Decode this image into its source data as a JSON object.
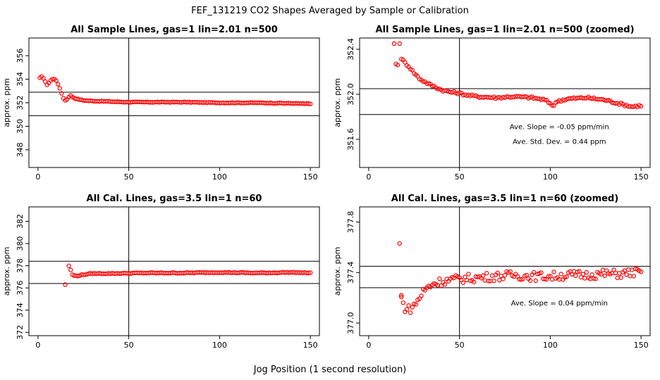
{
  "figure": {
    "title": "FEF_131219  CO2 Shapes Averaged by Sample or Calibration",
    "xlabel": "Jog Position (1 second resolution)"
  },
  "chart_data": [
    {
      "type": "scatter",
      "title": "All Sample Lines, gas=1 lin=2.01 n=500",
      "ylabel": "approx. ppm",
      "xlim": [
        -5,
        155
      ],
      "ylim": [
        346.5,
        357.5
      ],
      "x_ticks": [
        0,
        50,
        100,
        150
      ],
      "y_ticks": [
        348,
        350,
        352,
        354,
        356
      ],
      "hlines": [
        352.9,
        350.9
      ],
      "vline": 50,
      "annotations": [],
      "curve": {
        "x_start": 1,
        "x_end": 150,
        "anchors": [
          [
            1,
            354.1
          ],
          [
            2,
            354.2
          ],
          [
            3,
            354.1
          ],
          [
            4,
            353.8
          ],
          [
            5,
            353.5
          ],
          [
            6,
            353.7
          ],
          [
            7,
            353.9
          ],
          [
            8,
            354.0
          ],
          [
            9,
            354.0
          ],
          [
            10,
            353.9
          ],
          [
            11,
            353.6
          ],
          [
            12,
            353.2
          ],
          [
            13,
            352.8
          ],
          [
            14,
            352.4
          ],
          [
            15,
            352.2
          ],
          [
            16,
            352.3
          ],
          [
            17,
            352.5
          ],
          [
            18,
            352.6
          ],
          [
            19,
            352.5
          ],
          [
            20,
            352.4
          ],
          [
            22,
            352.3
          ],
          [
            25,
            352.2
          ],
          [
            30,
            352.15
          ],
          [
            40,
            352.1
          ],
          [
            50,
            352.05
          ],
          [
            60,
            352.05
          ],
          [
            80,
            352.05
          ],
          [
            100,
            352.0
          ],
          [
            120,
            352.0
          ],
          [
            140,
            351.95
          ],
          [
            150,
            351.9
          ]
        ],
        "noise": 0.03
      },
      "points": []
    },
    {
      "type": "scatter",
      "title": "All Sample Lines, gas=1 lin=2.01 n=500 (zoomed)",
      "ylabel": "approx. ppm",
      "xlim": [
        -5,
        155
      ],
      "ylim": [
        351.35,
        352.5
      ],
      "x_ticks": [
        0,
        50,
        100,
        150
      ],
      "y_ticks": [
        351.6,
        352.0,
        352.4
      ],
      "hlines": [
        352.05,
        351.82
      ],
      "vline": 50,
      "annotations": [
        {
          "text": "Ave. Slope =  -0.05  ppm/min",
          "x": 105,
          "y": 351.69
        },
        {
          "text": "Ave. Std. Dev. =  0.44  ppm",
          "x": 105,
          "y": 351.56
        }
      ],
      "curve": {
        "x_start": 18,
        "x_end": 150,
        "anchors": [
          [
            18,
            352.32
          ],
          [
            20,
            352.28
          ],
          [
            22,
            352.25
          ],
          [
            25,
            352.19
          ],
          [
            28,
            352.14
          ],
          [
            32,
            352.1
          ],
          [
            36,
            352.07
          ],
          [
            40,
            352.04
          ],
          [
            45,
            352.02
          ],
          [
            50,
            352.01
          ],
          [
            55,
            351.99
          ],
          [
            60,
            351.98
          ],
          [
            70,
            351.97
          ],
          [
            80,
            351.98
          ],
          [
            90,
            351.97
          ],
          [
            97,
            351.95
          ],
          [
            100,
            351.92
          ],
          [
            102,
            351.9
          ],
          [
            104,
            351.94
          ],
          [
            110,
            351.96
          ],
          [
            120,
            351.97
          ],
          [
            130,
            351.95
          ],
          [
            140,
            351.91
          ],
          [
            145,
            351.89
          ],
          [
            150,
            351.9
          ]
        ],
        "noise": 0.01
      },
      "points": [
        [
          14,
          352.45
        ],
        [
          15,
          352.27
        ],
        [
          16,
          352.26
        ],
        [
          17,
          352.45
        ]
      ]
    },
    {
      "type": "scatter",
      "title": "All Cal. Lines, gas=3.5 lin=1 n=60",
      "ylabel": "approx. ppm",
      "xlim": [
        -5,
        155
      ],
      "ylim": [
        371.7,
        383.3
      ],
      "x_ticks": [
        0,
        50,
        100,
        150
      ],
      "y_ticks": [
        372,
        374,
        376,
        378,
        380,
        382
      ],
      "hlines": [
        378.4,
        376.4
      ],
      "vline": 50,
      "annotations": [],
      "curve": {
        "x_start": 17,
        "x_end": 150,
        "anchors": [
          [
            17,
            378.0
          ],
          [
            18,
            377.6
          ],
          [
            19,
            377.2
          ],
          [
            20,
            377.1
          ],
          [
            22,
            377.1
          ],
          [
            25,
            377.2
          ],
          [
            30,
            377.3
          ],
          [
            40,
            377.3
          ],
          [
            60,
            377.35
          ],
          [
            80,
            377.35
          ],
          [
            100,
            377.4
          ],
          [
            120,
            377.35
          ],
          [
            140,
            377.4
          ],
          [
            150,
            377.35
          ]
        ],
        "noise": 0.04
      },
      "points": [
        [
          15,
          376.3
        ]
      ]
    },
    {
      "type": "scatter",
      "title": "All Cal. Lines, gas=3.5 lin=1 n=60 (zoomed)",
      "ylabel": "approx. ppm",
      "xlim": [
        -5,
        155
      ],
      "ylim": [
        376.9,
        377.92
      ],
      "x_ticks": [
        0,
        50,
        100,
        150
      ],
      "y_ticks": [
        377.0,
        377.4,
        377.8
      ],
      "hlines": [
        377.45,
        377.28
      ],
      "vline": 50,
      "annotations": [
        {
          "text": "Ave. Slope =  0.04  ppm/min",
          "x": 105,
          "y": 377.14
        }
      ],
      "curve": {
        "x_start": 18,
        "x_end": 150,
        "anchors": [
          [
            18,
            377.2
          ],
          [
            19,
            377.15
          ],
          [
            20,
            377.12
          ],
          [
            22,
            377.11
          ],
          [
            24,
            377.12
          ],
          [
            26,
            377.16
          ],
          [
            28,
            377.2
          ],
          [
            30,
            377.25
          ],
          [
            35,
            377.31
          ],
          [
            40,
            377.33
          ],
          [
            50,
            377.35
          ],
          [
            60,
            377.36
          ],
          [
            70,
            377.37
          ],
          [
            80,
            377.38
          ],
          [
            90,
            377.37
          ],
          [
            100,
            377.37
          ],
          [
            110,
            377.38
          ],
          [
            120,
            377.38
          ],
          [
            130,
            377.39
          ],
          [
            140,
            377.39
          ],
          [
            145,
            377.4
          ],
          [
            150,
            377.4
          ]
        ],
        "noise": 0.035
      },
      "points": [
        [
          17,
          377.63
        ],
        [
          18,
          377.22
        ]
      ]
    }
  ]
}
